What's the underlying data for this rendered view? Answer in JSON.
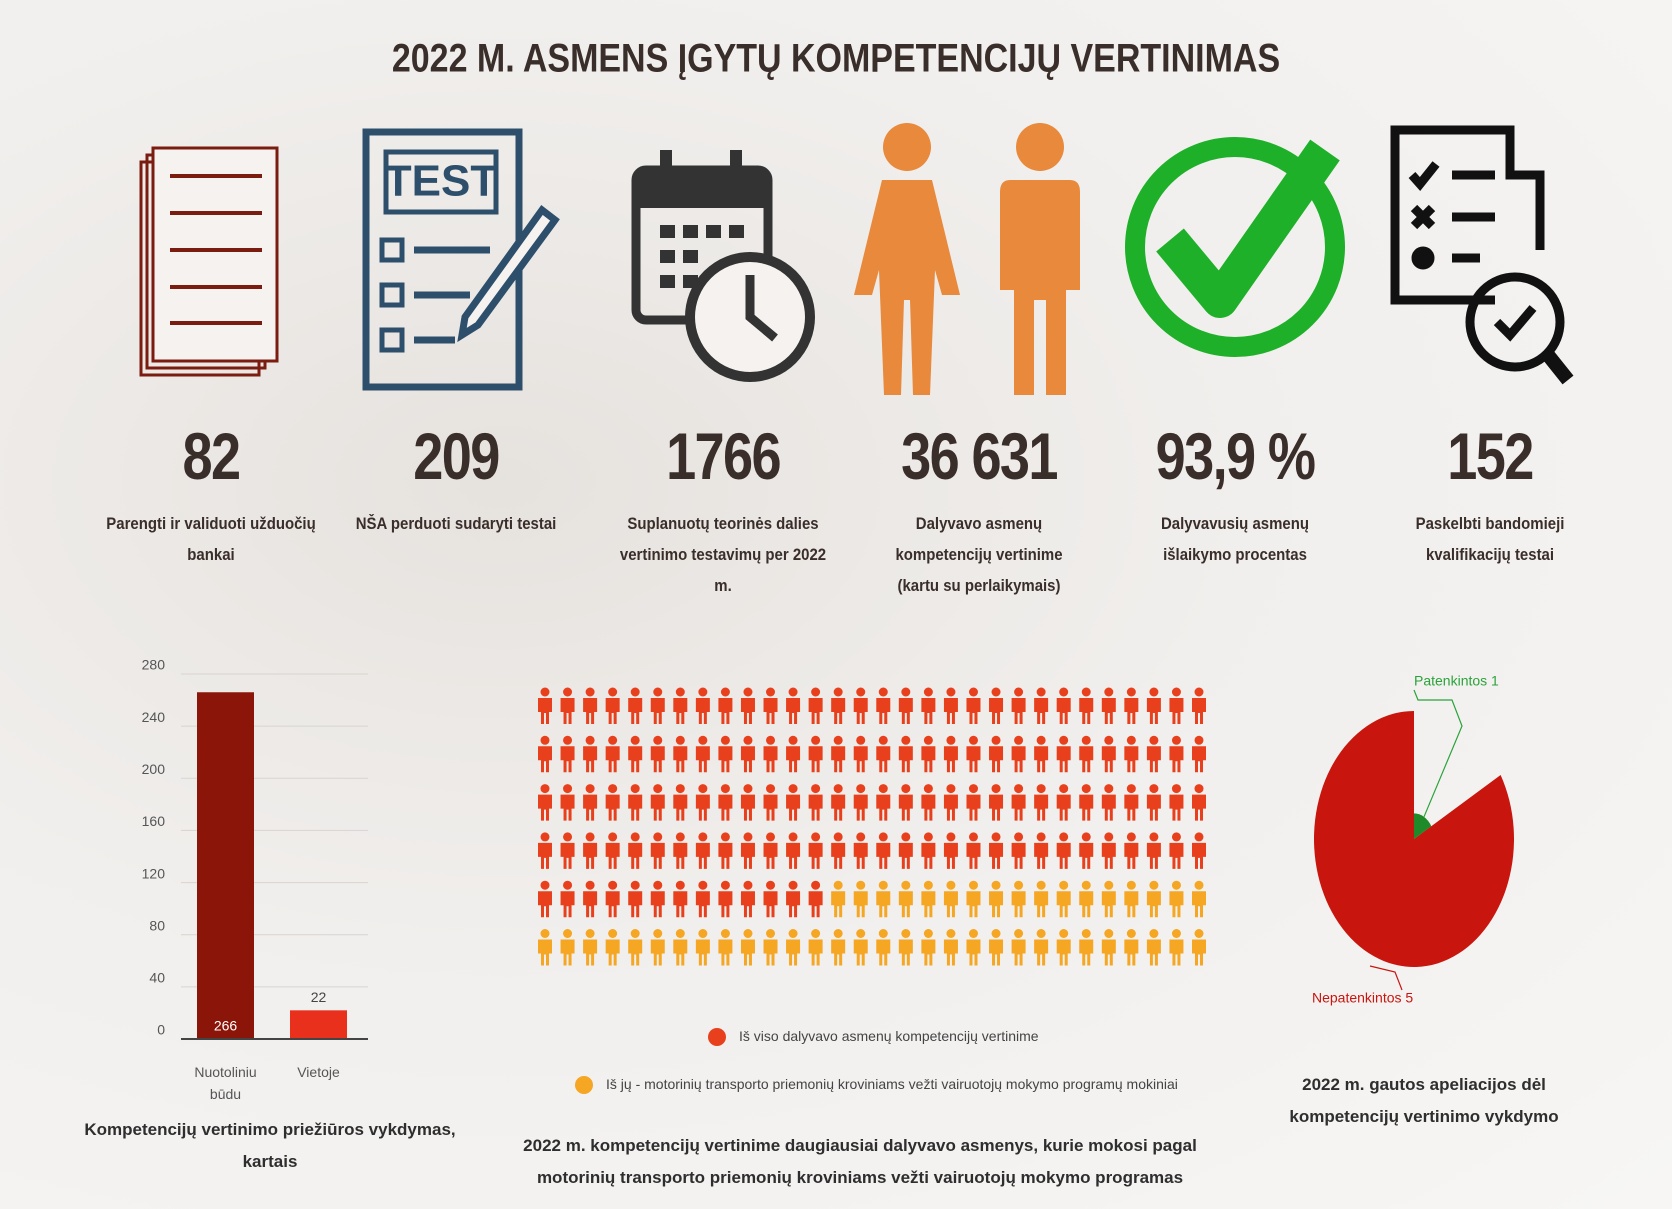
{
  "title": "2022 M. ASMENS ĮGYTŲ KOMPETENCIJŲ VERTINIMAS",
  "stats": [
    {
      "value": "82",
      "label": "Parengti ir validuoti užduočių bankai"
    },
    {
      "value": "209",
      "label": "NŠA perduoti sudaryti testai"
    },
    {
      "value": "1766",
      "label": "Suplanuotų teorinės dalies vertinimo testavimų per 2022 m."
    },
    {
      "value": "36 631",
      "label": "Dalyvavo asmenų kompetencijų vertinime (kartu su perlaikymais)"
    },
    {
      "value": "93,9 %",
      "label": "Dalyvavusių asmenų išlaikymo procentas"
    },
    {
      "value": "152",
      "label": "Paskelbti bandomieji kvalifikacijų testai"
    }
  ],
  "bar_chart": {
    "type": "bar",
    "title": "Kompetencijų vertinimo priežiūros vykdymas, kartais",
    "categories": [
      "Nuotoliniu būdu",
      "Vietoje"
    ],
    "values": [
      266,
      22
    ],
    "colors": [
      "#8b1508",
      "#e8301c"
    ],
    "ylim": [
      0,
      280
    ],
    "yticks": [
      0,
      40,
      80,
      120,
      160,
      200,
      240,
      280
    ],
    "grid": true
  },
  "pictogram": {
    "type": "pictogram",
    "title": "2022 m. kompetencijų vertinime daugiausiai dalyvavo asmenys, kurie mokosi pagal motorinių transporto priemonių kroviniams vežti vairuotojų mokymo programas",
    "columns": 30,
    "series": [
      {
        "name": "Iš viso dalyvavo asmenų kompetencijų vertinime",
        "color": "#e8401c",
        "value": 133
      },
      {
        "name": "Iš jų - motorinių transporto priemonių kroviniams vežti vairuotojų mokymo programų mokiniai",
        "color": "#f5a623",
        "value": 47
      }
    ]
  },
  "pie_chart": {
    "type": "pie",
    "title": "2022 m. gautos apeliacijos dėl kompetencijų vertinimo vykdymo",
    "values": [
      1,
      5
    ],
    "value_labels": [
      "Patenkintos 1",
      "Nepatenkintos 5"
    ],
    "colors": [
      "#1e8a2a",
      "#c8150e"
    ]
  }
}
